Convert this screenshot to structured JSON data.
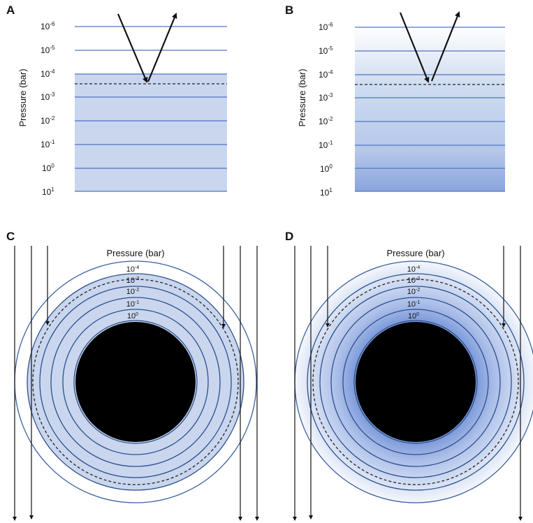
{
  "panels": {
    "A": {
      "letter": "A"
    },
    "B": {
      "letter": "B"
    },
    "C": {
      "letter": "C"
    },
    "D": {
      "letter": "D"
    }
  },
  "axis": {
    "ylabel": "Pressure (bar)",
    "ticks": [
      {
        "base": "10",
        "exp": "-6"
      },
      {
        "base": "10",
        "exp": "-5"
      },
      {
        "base": "10",
        "exp": "-4"
      },
      {
        "base": "10",
        "exp": "-3"
      },
      {
        "base": "10",
        "exp": "-2"
      },
      {
        "base": "10",
        "exp": "-1"
      },
      {
        "base": "10",
        "exp": "0"
      },
      {
        "base": "10",
        "exp": "1"
      }
    ]
  },
  "rings": {
    "title": "Pressure (bar)",
    "labels": [
      {
        "base": "10",
        "exp": "-4"
      },
      {
        "base": "10",
        "exp": "-3"
      },
      {
        "base": "10",
        "exp": "-2"
      },
      {
        "base": "10",
        "exp": "-1"
      },
      {
        "base": "10",
        "exp": "0"
      }
    ]
  },
  "colors": {
    "haze_fill": "#c9d6ee",
    "haze_dense": "#8fa9df",
    "pressure_line": "#4f74c4",
    "ring_stroke": "#2d4f8a",
    "planet": "#000000"
  }
}
